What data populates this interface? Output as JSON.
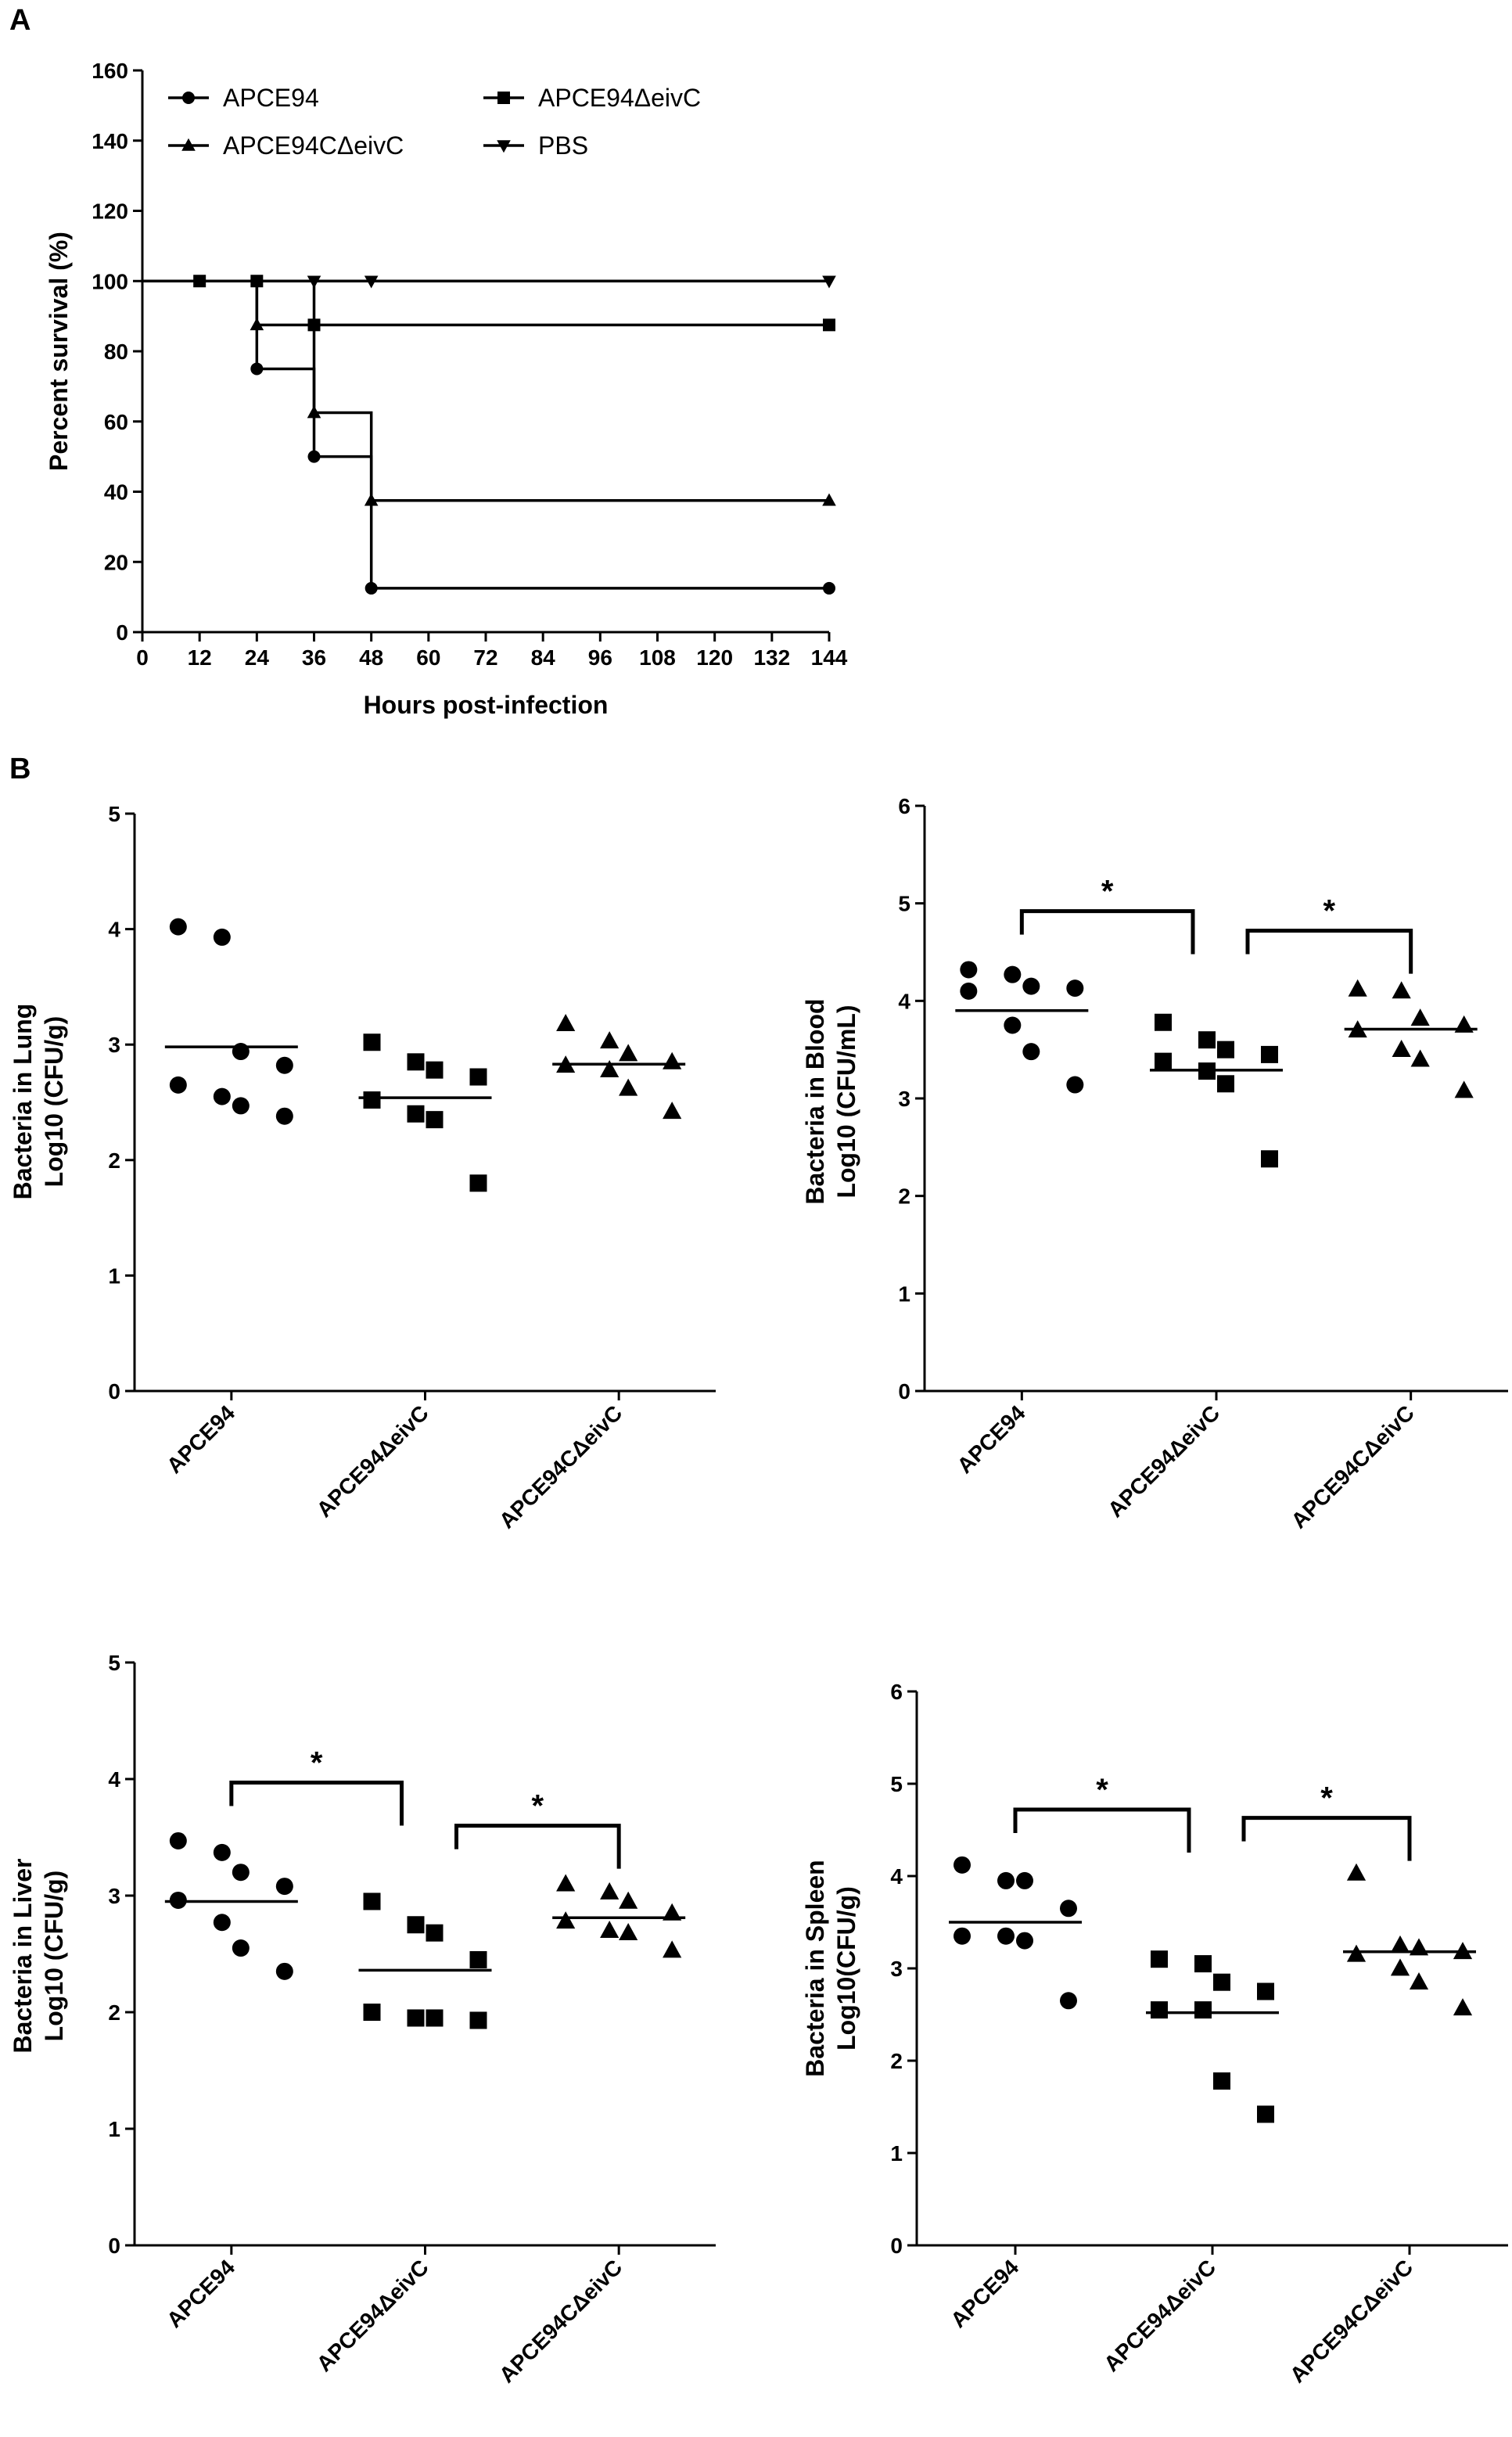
{
  "panel_a_label": "A",
  "panel_b_label": "B",
  "colors": {
    "ink": "#000000",
    "background": "#ffffff"
  },
  "chart_data": [
    {
      "type": "line",
      "subtype": "kaplan-meier-survival",
      "panel": "A",
      "title": "",
      "xlabel": "Hours post-infection",
      "ylabel": "Percent survival (%)",
      "xlim": [
        0,
        144
      ],
      "ylim": [
        0,
        160
      ],
      "xticks": [
        "0",
        "12",
        "24",
        "36",
        "48",
        "60",
        "72",
        "84",
        "96",
        "108",
        "120",
        "132",
        "144"
      ],
      "yticks": [
        "0",
        "20",
        "40",
        "60",
        "80",
        "100",
        "120",
        "140",
        "160"
      ],
      "legend_position": "top",
      "series": [
        {
          "name": "APCE94",
          "marker": "circle",
          "steps": [
            [
              0,
              100
            ],
            [
              24,
              75
            ],
            [
              36,
              50
            ],
            [
              48,
              12.5
            ],
            [
              144,
              12.5
            ]
          ]
        },
        {
          "name": "APCE94ΔeivC",
          "marker": "square",
          "steps": [
            [
              0,
              100
            ],
            [
              36,
              87.5
            ],
            [
              144,
              87.5
            ]
          ]
        },
        {
          "name": "APCE94CΔeivC",
          "marker": "triangle-up",
          "steps": [
            [
              0,
              100
            ],
            [
              24,
              87.5
            ],
            [
              36,
              62.5
            ],
            [
              48,
              37.5
            ],
            [
              144,
              37.5
            ]
          ]
        },
        {
          "name": "PBS",
          "marker": "triangle-down",
          "steps": [
            [
              0,
              100
            ],
            [
              144,
              100
            ]
          ]
        }
      ],
      "markers": [
        {
          "series": "APCE94ΔeivC",
          "marker": "square",
          "x": 12,
          "y": 100
        },
        {
          "series": "APCE94ΔeivC",
          "marker": "square",
          "x": 24,
          "y": 100
        },
        {
          "series": "APCE94CΔeivC",
          "marker": "triangle-up",
          "x": 24,
          "y": 87.5
        },
        {
          "series": "APCE94",
          "marker": "circle",
          "x": 24,
          "y": 75
        },
        {
          "series": "PBS",
          "marker": "triangle-down",
          "x": 36,
          "y": 100
        },
        {
          "series": "APCE94ΔeivC",
          "marker": "square",
          "x": 36,
          "y": 87.5
        },
        {
          "series": "APCE94CΔeivC",
          "marker": "triangle-up",
          "x": 36,
          "y": 62.5
        },
        {
          "series": "APCE94",
          "marker": "circle",
          "x": 36,
          "y": 50
        },
        {
          "series": "PBS",
          "marker": "triangle-down",
          "x": 48,
          "y": 100
        },
        {
          "series": "APCE94CΔeivC",
          "marker": "triangle-up",
          "x": 48,
          "y": 37.5
        },
        {
          "series": "APCE94",
          "marker": "circle",
          "x": 48,
          "y": 12.5
        },
        {
          "series": "PBS",
          "marker": "triangle-down",
          "x": 144,
          "y": 100
        },
        {
          "series": "APCE94ΔeivC",
          "marker": "square",
          "x": 144,
          "y": 87.5
        },
        {
          "series": "APCE94CΔeivC",
          "marker": "triangle-up",
          "x": 144,
          "y": 37.5
        },
        {
          "series": "APCE94",
          "marker": "circle",
          "x": 144,
          "y": 12.5
        }
      ]
    },
    {
      "type": "scatter",
      "subtype": "dot-plot-with-mean",
      "panel": "B-lung",
      "ylabel_line1": "Bacteria in Lung",
      "ylabel_line2": "Log10 (CFU/g)",
      "ylim": [
        0,
        5
      ],
      "yticks": [
        "0",
        "1",
        "2",
        "3",
        "4",
        "5"
      ],
      "categories": [
        "APCE94",
        "APCE94ΔeivC",
        "APCE94CΔeivC"
      ],
      "groups": [
        {
          "name": "APCE94",
          "marker": "circle",
          "mean": 2.98,
          "points": [
            3.93,
            4.02,
            2.82,
            2.94,
            2.55,
            2.65,
            2.38,
            2.47
          ]
        },
        {
          "name": "APCE94ΔeivC",
          "marker": "square",
          "mean": 2.54,
          "points": [
            3.02,
            2.78,
            2.85,
            2.72,
            2.52,
            2.35,
            2.4,
            1.8
          ]
        },
        {
          "name": "APCE94CΔeivC",
          "marker": "triangle-up",
          "mean": 2.83,
          "points": [
            3.18,
            3.03,
            2.92,
            2.85,
            2.82,
            2.78,
            2.62,
            2.42
          ]
        }
      ],
      "significance": []
    },
    {
      "type": "scatter",
      "subtype": "dot-plot-with-mean",
      "panel": "B-blood",
      "ylabel_line1": "Bacteria in Blood",
      "ylabel_line2": "Log10 (CFU/mL)",
      "ylim": [
        0,
        6
      ],
      "yticks": [
        "0",
        "1",
        "2",
        "3",
        "4",
        "5",
        "6"
      ],
      "categories": [
        "APCE94",
        "APCE94ΔeivC",
        "APCE94CΔeivC"
      ],
      "groups": [
        {
          "name": "APCE94",
          "marker": "circle",
          "mean": 3.9,
          "points": [
            4.32,
            4.15,
            4.1,
            4.13,
            4.27,
            3.75,
            3.48,
            3.14
          ]
        },
        {
          "name": "APCE94ΔeivC",
          "marker": "square",
          "mean": 3.29,
          "points": [
            3.78,
            3.5,
            3.6,
            3.45,
            3.38,
            3.15,
            3.28,
            2.38
          ]
        },
        {
          "name": "APCE94CΔeivC",
          "marker": "triangle-up",
          "mean": 3.71,
          "points": [
            4.12,
            4.1,
            3.82,
            3.75,
            3.7,
            3.5,
            3.4,
            3.08
          ]
        }
      ],
      "significance": [
        {
          "from": 0,
          "to": 1,
          "label": "*"
        },
        {
          "from": 1,
          "to": 2,
          "label": "*"
        }
      ]
    },
    {
      "type": "scatter",
      "subtype": "dot-plot-with-mean",
      "panel": "B-liver",
      "ylabel_line1": "Bacteria in Liver",
      "ylabel_line2": "Log10 (CFU/g)",
      "ylim": [
        0,
        5
      ],
      "yticks": [
        "0",
        "1",
        "2",
        "3",
        "4",
        "5"
      ],
      "categories": [
        "APCE94",
        "APCE94ΔeivC",
        "APCE94CΔeivC"
      ],
      "groups": [
        {
          "name": "APCE94",
          "marker": "circle",
          "mean": 2.95,
          "points": [
            3.47,
            3.37,
            3.08,
            2.96,
            3.2,
            2.77,
            2.55,
            2.35
          ]
        },
        {
          "name": "APCE94ΔeivC",
          "marker": "square",
          "mean": 2.36,
          "points": [
            2.95,
            2.75,
            2.68,
            2.45,
            1.95,
            2.0,
            1.93,
            1.95
          ]
        },
        {
          "name": "APCE94CΔeivC",
          "marker": "triangle-up",
          "mean": 2.81,
          "points": [
            3.1,
            3.03,
            2.95,
            2.85,
            2.78,
            2.68,
            2.7,
            2.53
          ]
        }
      ],
      "significance": [
        {
          "from": 0,
          "to": 1,
          "label": "*"
        },
        {
          "from": 1,
          "to": 2,
          "label": "*"
        }
      ]
    },
    {
      "type": "scatter",
      "subtype": "dot-plot-with-mean",
      "panel": "B-spleen",
      "ylabel_line1": "Bacteria in Spleen",
      "ylabel_line2": "Log10(CFU/g)",
      "ylim": [
        0,
        6
      ],
      "yticks": [
        "0",
        "1",
        "2",
        "3",
        "4",
        "5",
        "6"
      ],
      "categories": [
        "APCE94",
        "APCE94ΔeivC",
        "APCE94CΔeivC"
      ],
      "groups": [
        {
          "name": "APCE94",
          "marker": "circle",
          "mean": 3.5,
          "points": [
            4.12,
            3.95,
            3.95,
            3.65,
            3.35,
            3.35,
            3.3,
            2.65
          ]
        },
        {
          "name": "APCE94ΔeivC",
          "marker": "square",
          "mean": 2.52,
          "points": [
            3.1,
            3.05,
            2.85,
            2.75,
            2.55,
            2.55,
            1.78,
            1.42
          ]
        },
        {
          "name": "APCE94CΔeivC",
          "marker": "triangle-up",
          "mean": 3.18,
          "points": [
            4.03,
            3.25,
            3.22,
            3.18,
            3.15,
            3.0,
            2.85,
            2.57
          ]
        }
      ],
      "significance": [
        {
          "from": 0,
          "to": 1,
          "label": "*"
        },
        {
          "from": 1,
          "to": 2,
          "label": "*"
        }
      ]
    }
  ]
}
